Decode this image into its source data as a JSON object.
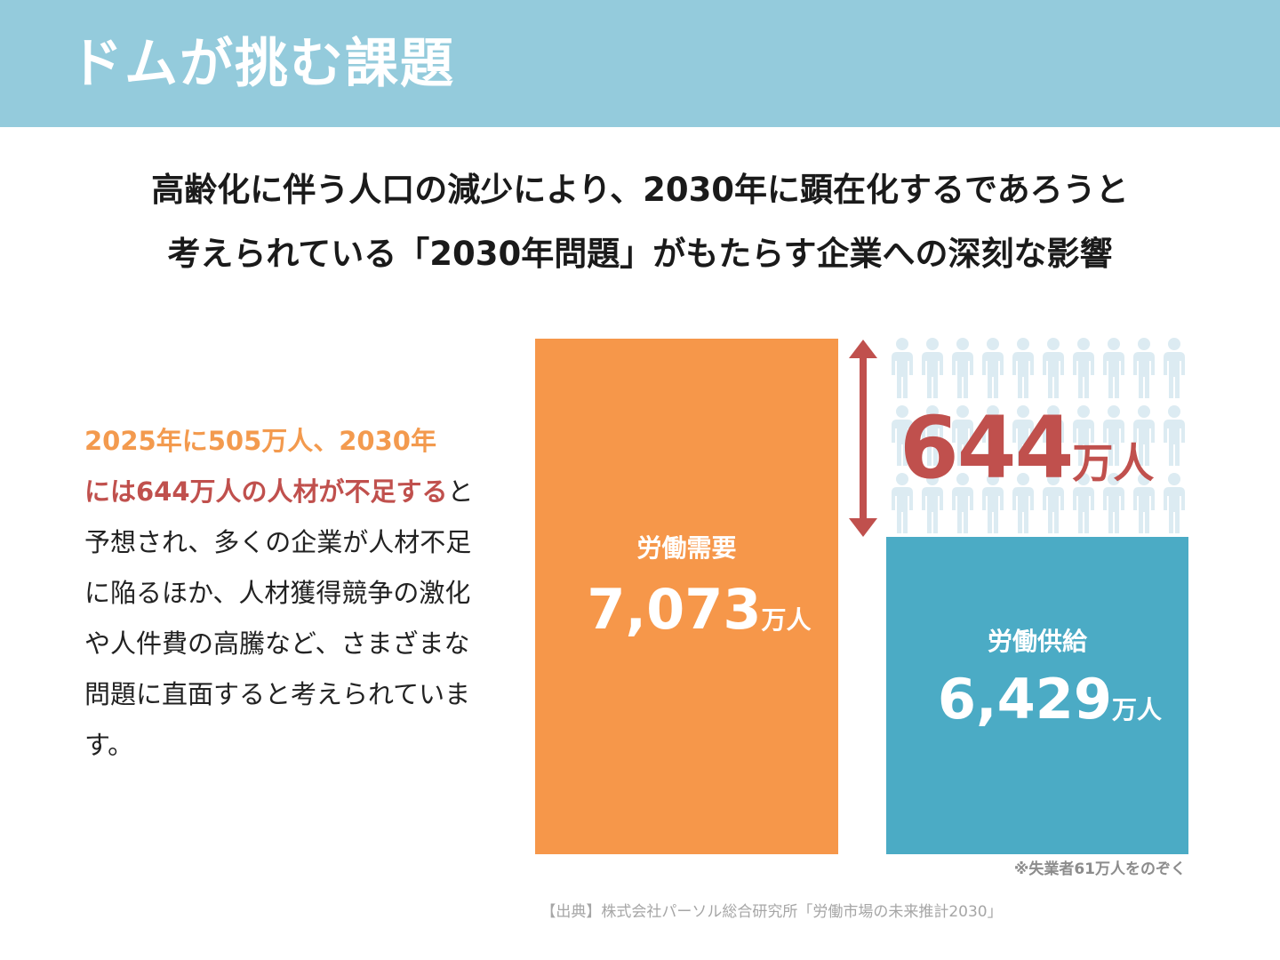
{
  "header": {
    "title": "ドムが挑む課題"
  },
  "subtitle": {
    "line1": "高齢化に伴う人口の減少により、2030年に顕在化するであろうと",
    "line2": "考えられている「2030年問題」がもたらす企業への深刻な影響"
  },
  "body": {
    "highlight_orange": "2025年に505万人、2030年",
    "highlight_red": "には644万人の人材が不足する",
    "rest": "と予想され、多くの企業が人材不足に陥るほか、人材獲得競争の激化や人件費の高騰など、さまざまな問題に直面すると考えられています。"
  },
  "chart_data": {
    "type": "bar",
    "categories": [
      "労働需要",
      "労働供給"
    ],
    "values": [
      7073,
      6429
    ],
    "unit": "万人",
    "value_labels": [
      "7,073",
      "6,429"
    ],
    "gap": {
      "value": 644,
      "label": "644"
    },
    "note": "※失業者61万人をのぞく",
    "colors": {
      "demand": "#f6974a",
      "supply": "#4babc5",
      "gap": "#c0504d",
      "people": "#dcebf2"
    }
  },
  "source": "【出典】株式会社パーソル総合研究所「労働市場の未来推計2030」"
}
